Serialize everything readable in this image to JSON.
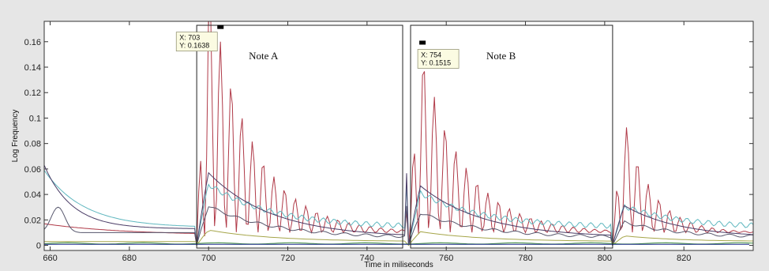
{
  "chart_data": {
    "type": "line",
    "xlabel": "Time in miliseconds",
    "ylabel": "Log Frequency",
    "xlim": [
      658.5,
      837.5
    ],
    "ylim": [
      -0.004,
      0.176
    ],
    "xticks": [
      660,
      680,
      700,
      720,
      740,
      760,
      780,
      800,
      820
    ],
    "yticks": [
      0,
      0.02,
      0.04,
      0.06,
      0.08,
      0.1,
      0.12,
      0.14,
      0.16
    ],
    "ytick_labels": [
      "0",
      "0.02",
      "0.04",
      "0.06",
      "0.08",
      "0.1",
      "0.12",
      "0.14",
      "0.16"
    ],
    "colors": {
      "red": "#b03a48",
      "cyan": "#5fb7bf",
      "purple": "#4a3c66",
      "gray": "#56566c",
      "olive": "#a6a64a",
      "green": "#3c8a3c",
      "blue": "#1a2a8a",
      "axes_bg": "#ffffff",
      "figure_bg": "#e6e6e6"
    },
    "annotations": [
      {
        "label": "Note A",
        "x_start": 697,
        "x_end": 749
      },
      {
        "label": "Note B",
        "x_start": 751,
        "x_end": 802
      }
    ],
    "datatips": [
      {
        "x": 703,
        "y": 0.1638,
        "x_text": "X: 703",
        "y_text": "Y: 0.1638"
      },
      {
        "x": 754,
        "y": 0.1515,
        "x_text": "X: 754",
        "y_text": "Y: 0.1515"
      }
    ]
  }
}
